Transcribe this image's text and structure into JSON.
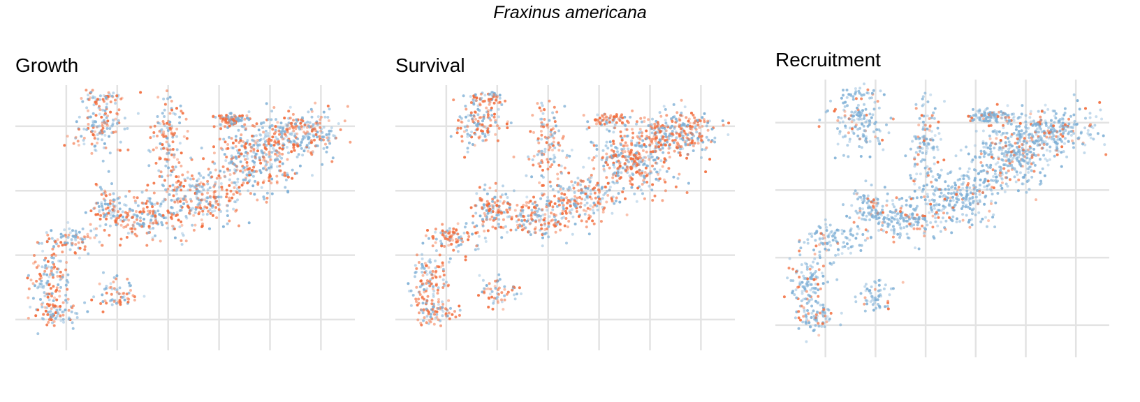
{
  "figure": {
    "title": "Fraxinus americana"
  },
  "colors": {
    "blue": "#7fb0d6",
    "orange": "#f26b3a",
    "grid": "#e3e3e3",
    "background": "#ffffff"
  },
  "chart_data": [
    {
      "type": "scatter",
      "title": "Growth",
      "xlabel": "",
      "ylabel": "",
      "x_tick_count": 6,
      "y_tick_count": 4,
      "grid": true,
      "axis_ticks_labeled": false,
      "legend": "none",
      "series": [
        {
          "color": "#7fb0d6",
          "role": "blue points",
          "approx_points": 900
        },
        {
          "color": "#f26b3a",
          "role": "orange points",
          "approx_points": 900
        }
      ],
      "orange_share": 0.5,
      "seed": 11
    },
    {
      "type": "scatter",
      "title": "Survival",
      "xlabel": "",
      "ylabel": "",
      "x_tick_count": 6,
      "y_tick_count": 4,
      "grid": true,
      "axis_ticks_labeled": false,
      "legend": "none",
      "series": [
        {
          "color": "#7fb0d6",
          "role": "blue points",
          "approx_points": 800
        },
        {
          "color": "#f26b3a",
          "role": "orange points",
          "approx_points": 1000
        }
      ],
      "orange_share": 0.55,
      "seed": 23
    },
    {
      "type": "scatter",
      "title": "Recruitment",
      "xlabel": "",
      "ylabel": "",
      "x_tick_count": 6,
      "y_tick_count": 4,
      "grid": true,
      "axis_ticks_labeled": false,
      "legend": "none",
      "series": [
        {
          "color": "#7fb0d6",
          "role": "blue points",
          "approx_points": 1500
        },
        {
          "color": "#f26b3a",
          "role": "orange points",
          "approx_points": 300
        }
      ],
      "orange_share": 0.17,
      "seed": 37
    }
  ]
}
